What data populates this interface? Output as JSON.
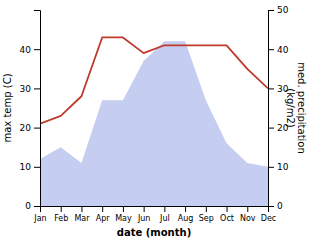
{
  "chart_data": {
    "type": "line",
    "categories": [
      "Jan",
      "Feb",
      "Mar",
      "Apr",
      "May",
      "Jun",
      "Jul",
      "Aug",
      "Sep",
      "Oct",
      "Nov",
      "Dec"
    ],
    "series": [
      {
        "type": "area",
        "axis": "y2",
        "color": "#c5cdf0",
        "values": [
          12,
          15,
          11,
          27,
          27,
          37,
          42,
          42,
          27,
          16,
          11,
          10
        ]
      },
      {
        "type": "line",
        "color": "#c0392b",
        "values": [
          21,
          23,
          28,
          43,
          43,
          39,
          41,
          41,
          41,
          41,
          35,
          30
        ]
      }
    ],
    "xlabel": "date (month)",
    "ylabel": "max temp (C)",
    "y2label": "med. precipitation\n(kg/m2)",
    "ylim": [
      0,
      50
    ],
    "yticks": [
      0,
      10,
      20,
      30,
      40
    ],
    "y2lim": [
      0,
      50
    ],
    "y2ticks": [
      0,
      10,
      20,
      30,
      40,
      50
    ],
    "grid": false
  }
}
